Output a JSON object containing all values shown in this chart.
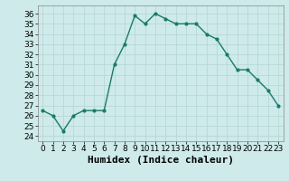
{
  "x": [
    0,
    1,
    2,
    3,
    4,
    5,
    6,
    7,
    8,
    9,
    10,
    11,
    12,
    13,
    14,
    15,
    16,
    17,
    18,
    19,
    20,
    21,
    22,
    23
  ],
  "y": [
    26.5,
    26,
    24.5,
    26,
    26.5,
    26.5,
    26.5,
    31,
    33,
    35.8,
    35,
    36,
    35.5,
    35,
    35,
    35,
    34,
    33.5,
    32,
    30.5,
    30.5,
    29.5,
    28.5,
    27
  ],
  "line_color": "#1a7a6a",
  "marker": "o",
  "marker_size": 2.0,
  "linewidth": 1.0,
  "xlabel": "Humidex (Indice chaleur)",
  "xlim": [
    -0.5,
    23.5
  ],
  "ylim": [
    23.5,
    36.8
  ],
  "yticks": [
    24,
    25,
    26,
    27,
    28,
    29,
    30,
    31,
    32,
    33,
    34,
    35,
    36
  ],
  "xticks": [
    0,
    1,
    2,
    3,
    4,
    5,
    6,
    7,
    8,
    9,
    10,
    11,
    12,
    13,
    14,
    15,
    16,
    17,
    18,
    19,
    20,
    21,
    22,
    23
  ],
  "bg_color": "#ceeaea",
  "grid_color": "#b8d8d8",
  "tick_label_fontsize": 6.5,
  "xlabel_fontsize": 8.0
}
